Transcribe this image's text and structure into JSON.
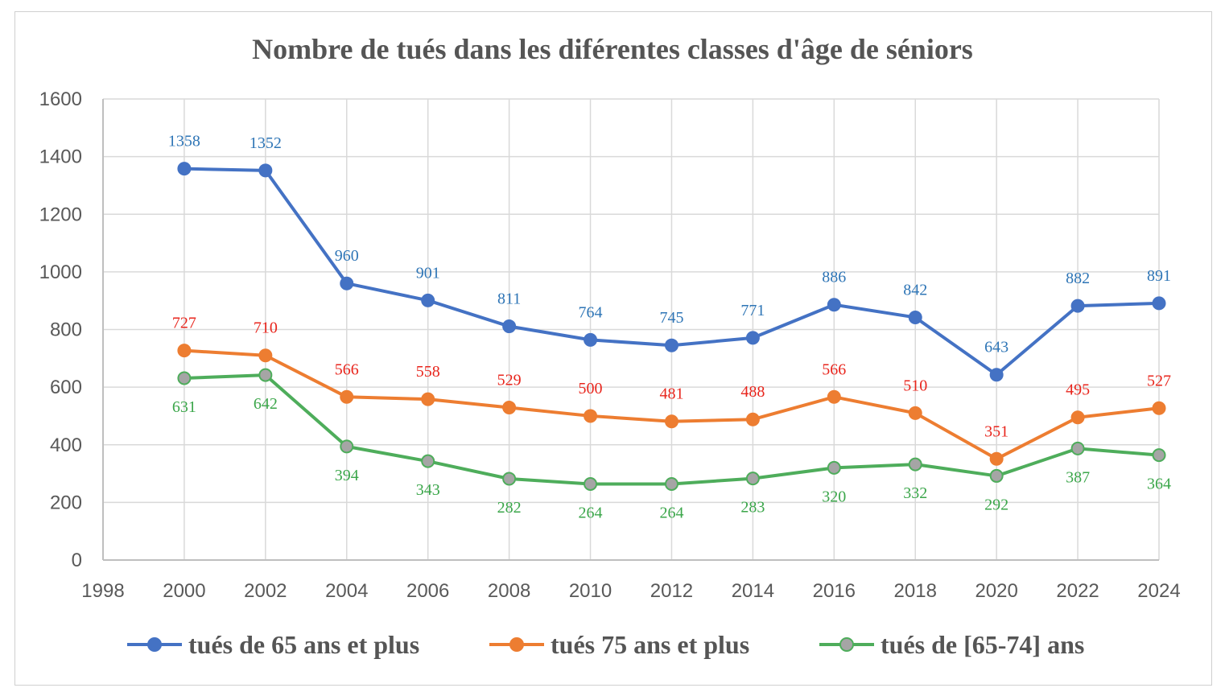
{
  "chart_data": {
    "type": "line",
    "title": "Nombre de tués dans les diférentes classes d'âge de séniors",
    "x_ticks": [
      1998,
      2000,
      2002,
      2004,
      2006,
      2008,
      2010,
      2012,
      2014,
      2016,
      2018,
      2020,
      2022,
      2024
    ],
    "y_ticks": [
      0,
      200,
      400,
      600,
      800,
      1000,
      1200,
      1400,
      1600
    ],
    "xlim": [
      1998,
      2024
    ],
    "ylim": [
      0,
      1600
    ],
    "grid": true,
    "legend_position": "bottom",
    "x": [
      2000,
      2002,
      2004,
      2006,
      2008,
      2010,
      2012,
      2014,
      2016,
      2018,
      2020,
      2022,
      2024
    ],
    "series": [
      {
        "name": "tués de 65 ans et plus",
        "color": "#4472C4",
        "label_color": "#2E75B6",
        "label_position": "above",
        "values": [
          1358,
          1352,
          960,
          901,
          811,
          764,
          745,
          771,
          886,
          842,
          643,
          882,
          891
        ]
      },
      {
        "name": "tués 75 ans et plus",
        "color": "#ED7D31",
        "label_color": "#E8251C",
        "label_position": "above",
        "values": [
          727,
          710,
          566,
          558,
          529,
          500,
          481,
          488,
          566,
          510,
          351,
          495,
          527
        ]
      },
      {
        "name": "tués de [65-74] ans",
        "color": "#4EAD5B",
        "marker_fill": "#A5A5A5",
        "label_color": "#3BA64A",
        "label_position": "below",
        "values": [
          631,
          642,
          394,
          343,
          282,
          264,
          264,
          283,
          320,
          332,
          292,
          387,
          364
        ]
      }
    ]
  }
}
